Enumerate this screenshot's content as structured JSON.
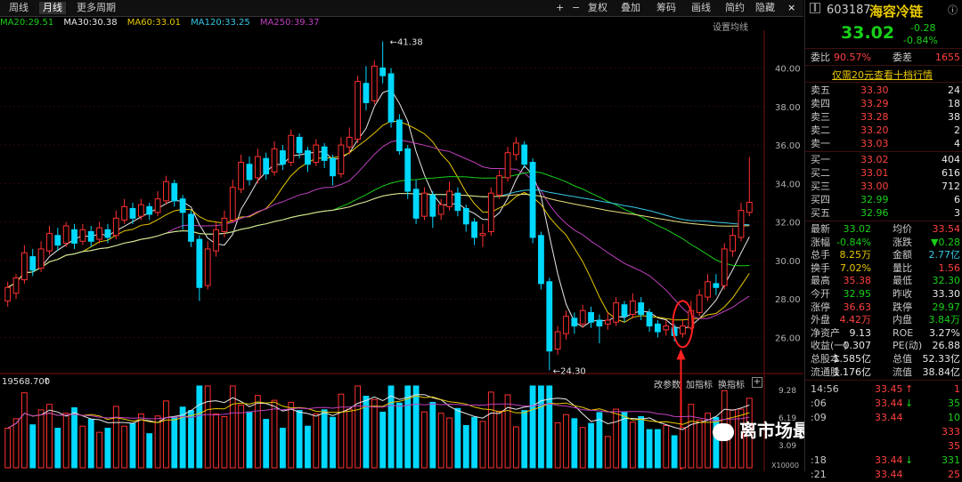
{
  "toolbar": {
    "left_tabs": [
      "周线",
      "月线",
      "更多周期"
    ],
    "right_items": [
      "+",
      "−",
      "复权",
      "叠加",
      "筹码",
      "画线",
      "简约",
      "隐藏"
    ]
  },
  "ma_legend": [
    {
      "label": "MA20:29.51",
      "color": "#18d018"
    },
    {
      "label": "MA30:30.38",
      "color": "#e8e8e8"
    },
    {
      "label": "MA60:33.01",
      "color": "#e8c800"
    },
    {
      "label": "MA120:33.25",
      "color": "#36c8e8"
    },
    {
      "label": "MA250:39.37",
      "color": "#c040c0"
    }
  ],
  "settings_label": "设置均线",
  "stock": {
    "code": "603187",
    "name": "海容冷链",
    "price": "33.02",
    "change": "-0.28",
    "change_pct": "-0.84%"
  },
  "quote_rows": {
    "weibi": {
      "label": "委比",
      "value": "90.57%",
      "label2": "委差",
      "value2": "1655"
    },
    "promo": "仅需20元查看十档行情",
    "sell": [
      {
        "label": "卖五",
        "price": "33.30",
        "vol": "24"
      },
      {
        "label": "卖四",
        "price": "33.29",
        "vol": "18"
      },
      {
        "label": "卖三",
        "price": "33.28",
        "vol": "38"
      },
      {
        "label": "卖二",
        "price": "33.20",
        "vol": "2"
      },
      {
        "label": "卖一",
        "price": "33.03",
        "vol": "4"
      }
    ],
    "buy": [
      {
        "label": "买一",
        "price": "33.02",
        "vol": "404"
      },
      {
        "label": "买二",
        "price": "33.01",
        "vol": "616"
      },
      {
        "label": "买三",
        "price": "33.00",
        "vol": "712"
      },
      {
        "label": "买四",
        "price": "32.99",
        "vol": "6"
      },
      {
        "label": "买五",
        "price": "32.96",
        "vol": "3"
      }
    ],
    "stats": [
      {
        "l": "最新",
        "v": "33.02",
        "c1": "green",
        "l2": "均价",
        "v2": "33.54",
        "c2": "red"
      },
      {
        "l": "涨幅",
        "v": "-0.84%",
        "c1": "green",
        "l2": "涨跌",
        "v2": "▼0.28",
        "c2": "green"
      },
      {
        "l": "总手",
        "v": "8.25万",
        "c1": "yellow",
        "l2": "金额",
        "v2": "2.77亿",
        "c2": "cyan"
      },
      {
        "l": "换手",
        "v": "7.02%",
        "c1": "yellow",
        "l2": "量比",
        "v2": "1.56",
        "c2": "red"
      },
      {
        "l": "最高",
        "v": "35.38",
        "c1": "red",
        "l2": "最低",
        "v2": "32.30",
        "c2": "green"
      },
      {
        "l": "今开",
        "v": "32.95",
        "c1": "green",
        "l2": "昨收",
        "v2": "33.30",
        "c2": "white"
      },
      {
        "l": "涨停",
        "v": "36.63",
        "c1": "red",
        "l2": "跌停",
        "v2": "29.97",
        "c2": "green"
      },
      {
        "l": "外盘",
        "v": "4.42万",
        "c1": "red",
        "l2": "内盘",
        "v2": "3.84万",
        "c2": "green"
      },
      {
        "l": "净资产",
        "v": "9.13",
        "c1": "white",
        "l2": "ROE",
        "v2": "3.27%",
        "c2": "white"
      },
      {
        "l": "收益(一)",
        "v": "0.307",
        "c1": "white",
        "l2": "PE(动)",
        "v2": "26.88",
        "c2": "white"
      },
      {
        "l": "总股本",
        "v": "1.585亿",
        "c1": "white",
        "l2": "总值",
        "v2": "52.33亿",
        "c2": "white"
      },
      {
        "l": "流通股",
        "v": "1.176亿",
        "c1": "white",
        "l2": "流值",
        "v2": "38.84亿",
        "c2": "white"
      }
    ],
    "ticks": [
      {
        "time": "14:56",
        "price": "33.45",
        "arrow": "↑",
        "vol": "1",
        "pc": "red",
        "ac": "red",
        "vc": "red"
      },
      {
        "time": ":06",
        "price": "33.44",
        "arrow": "↓",
        "vol": "35",
        "pc": "red",
        "ac": "green",
        "vc": "green"
      },
      {
        "time": ":09",
        "price": "33.44",
        "arrow": "",
        "vol": "10",
        "pc": "red",
        "ac": "red",
        "vc": "green"
      },
      {
        "time": "",
        "price": "",
        "arrow": "",
        "vol": "333",
        "pc": "red",
        "ac": "red",
        "vc": "red"
      },
      {
        "time": "",
        "price": "",
        "arrow": "",
        "vol": "35",
        "pc": "red",
        "ac": "red",
        "vc": "red"
      },
      {
        "time": ":18",
        "price": "33.44",
        "arrow": "↓",
        "vol": "331",
        "pc": "red",
        "ac": "green",
        "vc": "green"
      },
      {
        "time": ":21",
        "price": "33.44",
        "arrow": "",
        "vol": "25",
        "pc": "red",
        "ac": "red",
        "vc": "red"
      }
    ]
  },
  "chart_data": {
    "type": "candlestick",
    "y_ticks": [
      "40.00",
      "38.00",
      "36.00",
      "34.00",
      "32.00",
      "30.00",
      "28.00",
      "26.00"
    ],
    "ylim": [
      24.5,
      41.5
    ],
    "high_label": "41.38",
    "low_label": "24.30",
    "candles": [
      [
        27.9,
        28.6,
        27.6,
        28.9
      ],
      [
        28.3,
        29.1,
        28.0,
        29.3
      ],
      [
        29.0,
        30.4,
        28.8,
        30.8
      ],
      [
        30.2,
        29.5,
        29.2,
        30.6
      ],
      [
        29.6,
        30.6,
        29.4,
        31.0
      ],
      [
        30.5,
        31.4,
        30.3,
        31.8
      ],
      [
        31.3,
        30.8,
        30.5,
        31.7
      ],
      [
        30.9,
        31.8,
        30.7,
        32.0
      ],
      [
        31.6,
        30.9,
        30.6,
        31.9
      ],
      [
        31.0,
        31.6,
        30.8,
        31.9
      ],
      [
        31.5,
        31.0,
        30.7,
        31.8
      ],
      [
        31.1,
        31.7,
        30.9,
        32.0
      ],
      [
        31.6,
        31.2,
        30.9,
        31.9
      ],
      [
        31.3,
        32.2,
        31.1,
        32.6
      ],
      [
        32.1,
        32.8,
        31.9,
        33.2
      ],
      [
        32.7,
        32.2,
        31.9,
        33.0
      ],
      [
        32.3,
        32.9,
        32.1,
        33.2
      ],
      [
        32.8,
        32.4,
        32.1,
        33.0
      ],
      [
        32.5,
        33.2,
        32.3,
        33.6
      ],
      [
        33.1,
        34.1,
        32.9,
        34.4
      ],
      [
        34.0,
        33.1,
        32.8,
        34.2
      ],
      [
        33.2,
        32.5,
        31.6,
        33.4
      ],
      [
        32.4,
        31.0,
        30.7,
        32.6
      ],
      [
        31.1,
        28.6,
        27.9,
        31.3
      ],
      [
        28.7,
        30.6,
        28.5,
        31.0
      ],
      [
        30.5,
        31.6,
        30.2,
        32.0
      ],
      [
        31.5,
        32.2,
        31.2,
        32.6
      ],
      [
        32.1,
        33.8,
        32.0,
        34.2
      ],
      [
        33.7,
        35.1,
        33.5,
        35.5
      ],
      [
        35.0,
        34.2,
        33.9,
        35.4
      ],
      [
        34.3,
        35.4,
        34.0,
        35.8
      ],
      [
        35.3,
        34.5,
        34.2,
        35.6
      ],
      [
        34.6,
        35.8,
        34.4,
        36.2
      ],
      [
        35.7,
        35.0,
        34.7,
        36.0
      ],
      [
        35.1,
        36.5,
        34.9,
        36.8
      ],
      [
        36.4,
        35.6,
        35.3,
        36.6
      ],
      [
        35.7,
        35.0,
        34.6,
        35.9
      ],
      [
        35.1,
        36.0,
        34.9,
        36.3
      ],
      [
        35.9,
        35.2,
        34.8,
        36.1
      ],
      [
        35.3,
        34.4,
        33.9,
        35.5
      ],
      [
        34.5,
        36.0,
        34.3,
        36.4
      ],
      [
        35.9,
        36.4,
        35.5,
        36.9
      ],
      [
        36.3,
        39.3,
        36.1,
        39.6
      ],
      [
        39.2,
        38.2,
        37.8,
        40.1
      ],
      [
        38.3,
        40.1,
        38.1,
        40.4
      ],
      [
        40.0,
        39.6,
        39.2,
        41.38
      ],
      [
        39.7,
        37.2,
        36.9,
        40.0
      ],
      [
        37.3,
        35.7,
        35.5,
        37.6
      ],
      [
        35.8,
        33.6,
        33.2,
        36.0
      ],
      [
        33.7,
        32.2,
        31.9,
        34.2
      ],
      [
        32.3,
        33.5,
        32.1,
        33.8
      ],
      [
        33.4,
        32.3,
        31.7,
        33.6
      ],
      [
        32.4,
        32.9,
        32.1,
        33.2
      ],
      [
        32.8,
        33.6,
        32.6,
        34.1
      ],
      [
        33.5,
        32.6,
        32.3,
        33.8
      ],
      [
        32.7,
        31.9,
        31.5,
        32.9
      ],
      [
        32.0,
        31.2,
        30.8,
        32.2
      ],
      [
        31.3,
        31.4,
        30.7,
        31.9
      ],
      [
        31.5,
        33.5,
        31.3,
        33.8
      ],
      [
        33.4,
        34.4,
        33.2,
        34.7
      ],
      [
        34.3,
        35.6,
        34.1,
        35.9
      ],
      [
        35.5,
        36.1,
        35.2,
        36.4
      ],
      [
        36.0,
        35.0,
        34.8,
        36.2
      ],
      [
        35.1,
        31.2,
        30.9,
        35.3
      ],
      [
        31.3,
        28.8,
        28.5,
        31.5
      ],
      [
        28.9,
        25.3,
        24.3,
        29.1
      ],
      [
        25.4,
        26.3,
        25.1,
        26.6
      ],
      [
        26.2,
        27.1,
        25.9,
        27.4
      ],
      [
        27.0,
        26.6,
        26.2,
        27.3
      ],
      [
        26.7,
        27.4,
        26.5,
        27.7
      ],
      [
        27.3,
        26.8,
        26.5,
        27.6
      ],
      [
        26.9,
        26.6,
        25.7,
        27.2
      ],
      [
        26.7,
        26.9,
        26.4,
        27.3
      ],
      [
        26.8,
        27.8,
        26.6,
        28.1
      ],
      [
        27.7,
        27.1,
        26.8,
        27.9
      ],
      [
        27.2,
        27.9,
        27.0,
        28.3
      ],
      [
        27.8,
        27.2,
        26.9,
        28.1
      ],
      [
        27.3,
        26.6,
        26.3,
        27.5
      ],
      [
        26.7,
        26.3,
        26.0,
        26.9
      ],
      [
        26.4,
        26.6,
        26.1,
        26.9
      ],
      [
        26.5,
        26.1,
        25.8,
        26.7
      ],
      [
        26.2,
        26.6,
        26.0,
        26.9
      ],
      [
        26.5,
        27.4,
        26.4,
        27.9
      ],
      [
        27.3,
        28.2,
        27.1,
        28.5
      ],
      [
        28.1,
        28.9,
        27.9,
        29.3
      ],
      [
        28.8,
        28.6,
        28.2,
        29.3
      ],
      [
        28.7,
        30.6,
        28.5,
        30.9
      ],
      [
        30.5,
        31.3,
        30.2,
        31.7
      ],
      [
        31.2,
        32.6,
        31.0,
        33.0
      ],
      [
        32.5,
        33.02,
        32.3,
        35.38
      ]
    ],
    "series": [
      {
        "name": "MA20:29.51",
        "color": "#18d018"
      },
      {
        "name": "MA30:30.38",
        "color": "#e8e8e8"
      },
      {
        "name": "MA60:33.01",
        "color": "#e8c800"
      },
      {
        "name": "MA120:33.25",
        "color": "#36c8e8"
      },
      {
        "name": "MA250:39.37",
        "color": "#c040c0"
      }
    ],
    "volume_header": "19568.700",
    "volume_ticks": [
      "9.28",
      "6.19",
      "3.09"
    ],
    "volume_unit": "X10000"
  },
  "volume_buttons": [
    "改参数",
    "加指标",
    "换指标"
  ],
  "watermark": "离市场最近的兔子"
}
